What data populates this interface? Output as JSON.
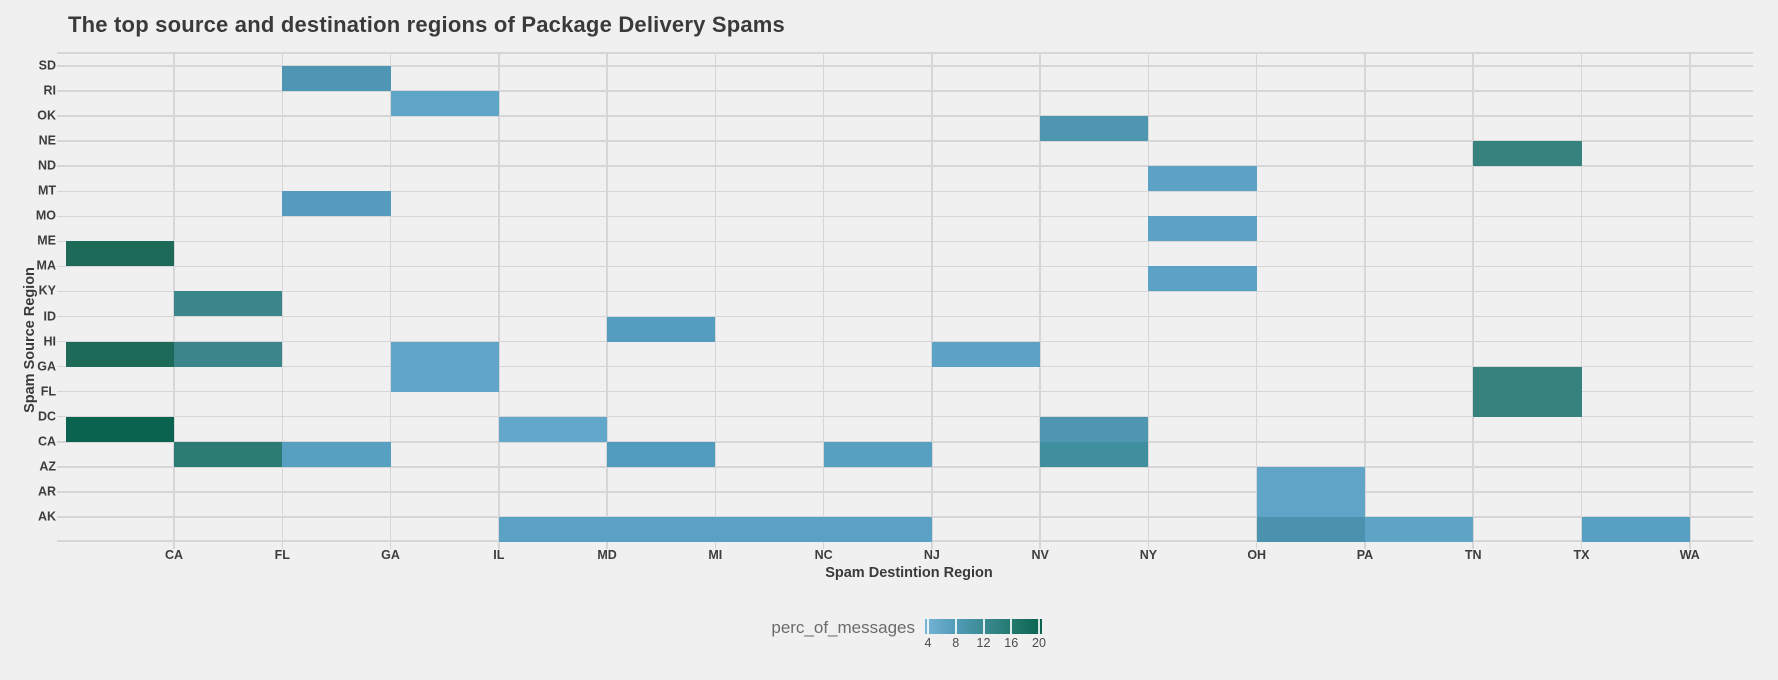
{
  "title": "The top source and destination regions of Package Delivery Spams",
  "y_axis": {
    "title": "Spam Source Region"
  },
  "x_axis": {
    "title": "Spam Destintion Region"
  },
  "legend": {
    "label": "perc_of_messages",
    "ticks": [
      4,
      8,
      12,
      16,
      20
    ],
    "gradient": [
      "#78b4d6",
      "#539db9",
      "#3b8b93",
      "#23786d",
      "#0a6350"
    ],
    "position": "bottom-center"
  },
  "colors": {
    "background": "#f0f0f0",
    "grid": "#d6d6d6",
    "text_dark": "#3a3a3a",
    "text_muted": "#6b6b6b"
  },
  "chart_data": {
    "type": "heatmap",
    "title": "The top source and destination regions of Package Delivery Spams",
    "xlabel": "Spam Destintion Region",
    "ylabel": "Spam Source Region",
    "value_label": "perc_of_messages",
    "value_range": [
      4,
      20
    ],
    "grid": true,
    "x_categories": [
      "CA",
      "FL",
      "GA",
      "IL",
      "MD",
      "MI",
      "NC",
      "NJ",
      "NV",
      "NY",
      "OH",
      "PA",
      "TN",
      "TX",
      "WA"
    ],
    "y_categories": [
      "SD",
      "RI",
      "OK",
      "NE",
      "ND",
      "MT",
      "MO",
      "ME",
      "MA",
      "KY",
      "ID",
      "HI",
      "GA",
      "FL",
      "DC",
      "CA",
      "AZ",
      "AR",
      "AK"
    ],
    "cells": [
      {
        "source": "SD",
        "dest": "GA",
        "value": 8,
        "color": "#4f96b5"
      },
      {
        "source": "RI",
        "dest": "IL",
        "value": 6,
        "color": "#5ea5c8"
      },
      {
        "source": "OK",
        "dest": "NY",
        "value": 8,
        "color": "#4f97b0"
      },
      {
        "source": "NE",
        "dest": "TX",
        "value": 13,
        "color": "#35827f"
      },
      {
        "source": "ND",
        "dest": "OH",
        "value": 6,
        "color": "#5ba2c6"
      },
      {
        "source": "MT",
        "dest": "GA",
        "value": 7,
        "color": "#549bbf"
      },
      {
        "source": "MO",
        "dest": "OH",
        "value": 6,
        "color": "#5ba2c6"
      },
      {
        "source": "ME",
        "dest": "CA",
        "value": 18,
        "color": "#1d6a58"
      },
      {
        "source": "MA",
        "dest": "OH",
        "value": 6,
        "color": "#5ba2c6"
      },
      {
        "source": "KY",
        "dest": "FL",
        "value": 12,
        "color": "#3b868b"
      },
      {
        "source": "ID",
        "dest": "MI",
        "value": 7,
        "color": "#549cc0"
      },
      {
        "source": "HI",
        "dest": "CA",
        "value": 18,
        "color": "#1d6a58"
      },
      {
        "source": "HI",
        "dest": "FL",
        "value": 12,
        "color": "#3b868b"
      },
      {
        "source": "HI",
        "dest": "IL",
        "value": 5,
        "color": "#61a6ca"
      },
      {
        "source": "HI",
        "dest": "NV",
        "value": 6,
        "color": "#5ba2c6"
      },
      {
        "source": "GA",
        "dest": "IL",
        "value": 5,
        "color": "#61a6ca"
      },
      {
        "source": "GA",
        "dest": "TX",
        "value": 13,
        "color": "#35827f"
      },
      {
        "source": "FL",
        "dest": "TX",
        "value": 13,
        "color": "#35827f"
      },
      {
        "source": "DC",
        "dest": "CA",
        "value": 20,
        "color": "#09634f"
      },
      {
        "source": "DC",
        "dest": "MD",
        "value": 5,
        "color": "#63a8cc"
      },
      {
        "source": "DC",
        "dest": "NY",
        "value": 8,
        "color": "#4f97b0"
      },
      {
        "source": "CA",
        "dest": "FL",
        "value": 14,
        "color": "#2d7c74"
      },
      {
        "source": "CA",
        "dest": "GA",
        "value": 7,
        "color": "#57a0c2"
      },
      {
        "source": "CA",
        "dest": "MI",
        "value": 7,
        "color": "#519bbe"
      },
      {
        "source": "CA",
        "dest": "NJ",
        "value": 7,
        "color": "#57a0c2"
      },
      {
        "source": "CA",
        "dest": "NY",
        "value": 10,
        "color": "#408f9e"
      },
      {
        "source": "AZ",
        "dest": "PA",
        "value": 5,
        "color": "#60a5c8"
      },
      {
        "source": "AR",
        "dest": "PA",
        "value": 5,
        "color": "#60a5c8"
      },
      {
        "source": "AK",
        "dest": "MD",
        "value": 6,
        "color": "#5aa1c5"
      },
      {
        "source": "AK",
        "dest": "MI",
        "value": 6,
        "color": "#5aa1c5"
      },
      {
        "source": "AK",
        "dest": "NC",
        "value": 6,
        "color": "#5aa1c5"
      },
      {
        "source": "AK",
        "dest": "NJ",
        "value": 6,
        "color": "#5aa1c5"
      },
      {
        "source": "AK",
        "dest": "PA",
        "value": 9,
        "color": "#4a92ad"
      },
      {
        "source": "AK",
        "dest": "TN",
        "value": 6,
        "color": "#5ea4c7"
      },
      {
        "source": "AK",
        "dest": "WA",
        "value": 6,
        "color": "#57a0c3"
      }
    ]
  }
}
